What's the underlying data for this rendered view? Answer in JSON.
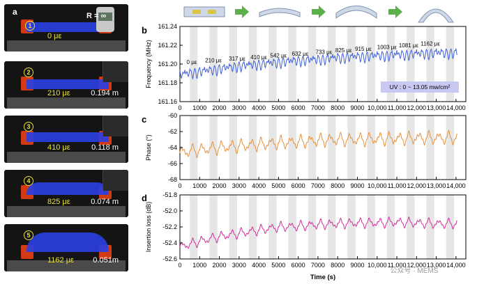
{
  "photo_panel": {
    "label": "a",
    "radius_label": "R = ∞",
    "gauge_readout": [
      "2.4227",
      "8561"
    ],
    "steps": [
      {
        "num": "1",
        "strain": "0 με",
        "radius": ""
      },
      {
        "num": "2",
        "strain": "210 με",
        "radius": "0.194 m"
      },
      {
        "num": "3",
        "strain": "410 με",
        "radius": "0.118 m"
      },
      {
        "num": "4",
        "strain": "825 με",
        "radius": "0.074 m"
      },
      {
        "num": "5",
        "strain": "1162 με",
        "radius": "0.051m"
      }
    ]
  },
  "uv_label": "UV : 0 ~ 13.05 mw/cm²",
  "x_axis_label": "Time (s)",
  "watermark": "公众号 · MEMS",
  "chart_data": [
    {
      "id": "b",
      "type": "line",
      "panel_label": "b",
      "ylabel": "Frequency (MHz)",
      "color": "#3f5fd8",
      "xlim": [
        0,
        14500
      ],
      "ylim": [
        161.16,
        161.24
      ],
      "y_ticks": [
        "161.24",
        "161.22",
        "161.20",
        "161.18",
        "161.16"
      ],
      "x_ticks": [
        "0",
        "1000",
        "2000",
        "3000",
        "4000",
        "5000",
        "6000",
        "7000",
        "8000",
        "9000",
        "10,000",
        "11,000",
        "12,000",
        "13,000",
        "14,000"
      ],
      "x": [
        0,
        1000,
        2000,
        3000,
        4000,
        5000,
        6000,
        7000,
        8000,
        9000,
        10000,
        11000,
        12000,
        13000,
        14000
      ],
      "values": [
        161.193,
        161.196,
        161.199,
        161.202,
        161.204,
        161.206,
        161.208,
        161.209,
        161.211,
        161.212,
        161.213,
        161.214,
        161.215,
        161.216,
        161.216
      ],
      "annotations": [
        {
          "x": 600,
          "text": "0 με"
        },
        {
          "x": 1700,
          "text": "210 με"
        },
        {
          "x": 2900,
          "text": "317 με"
        },
        {
          "x": 4000,
          "text": "410 με"
        },
        {
          "x": 5000,
          "text": "542 με"
        },
        {
          "x": 6100,
          "text": "632 με"
        },
        {
          "x": 7300,
          "text": "733 με"
        },
        {
          "x": 8300,
          "text": "825 με"
        },
        {
          "x": 9300,
          "text": "915 με"
        },
        {
          "x": 10500,
          "text": "1003 με"
        },
        {
          "x": 11600,
          "text": "1081 με"
        },
        {
          "x": 12700,
          "text": "1162 με"
        }
      ]
    },
    {
      "id": "c",
      "type": "line",
      "panel_label": "c",
      "ylabel": "Phase (°)",
      "color": "#e8913a",
      "xlim": [
        0,
        14500
      ],
      "ylim": [
        -68,
        -60
      ],
      "y_ticks": [
        "-60",
        "-62",
        "-64",
        "-66",
        "-68"
      ],
      "x_ticks": [
        "0",
        "1000",
        "2000",
        "3000",
        "4000",
        "5000",
        "6000",
        "7000",
        "8000",
        "9000",
        "10,000",
        "11,000",
        "12,000",
        "13,000",
        "14,000"
      ],
      "x": [
        0,
        1000,
        2000,
        3000,
        4000,
        5000,
        6000,
        7000,
        8000,
        9000,
        10000,
        11000,
        12000,
        13000,
        14000
      ],
      "values": [
        -64.6,
        -64.3,
        -64.0,
        -63.8,
        -63.6,
        -63.4,
        -63.3,
        -63.1,
        -63.0,
        -63.0,
        -62.9,
        -62.9,
        -62.8,
        -62.8,
        -62.8
      ]
    },
    {
      "id": "d",
      "type": "line",
      "panel_label": "d",
      "ylabel": "Insertion loss (dB)",
      "color": "#d0309a",
      "xlim": [
        0,
        14500
      ],
      "ylim": [
        -52.6,
        -51.8
      ],
      "y_ticks": [
        "-51.8",
        "-52.0",
        "-52.2",
        "-52.4",
        "-52.6"
      ],
      "x_ticks": [
        "0",
        "1000",
        "2000",
        "3000",
        "4000",
        "5000",
        "6000",
        "7000",
        "8000",
        "9000",
        "10,000",
        "11,000",
        "12,000",
        "13,000",
        "14,000"
      ],
      "x": [
        0,
        1000,
        2000,
        3000,
        4000,
        5000,
        6000,
        7000,
        8000,
        9000,
        10000,
        11000,
        12000,
        13000,
        14000
      ],
      "values": [
        -52.45,
        -52.38,
        -52.32,
        -52.28,
        -52.24,
        -52.2,
        -52.19,
        -52.17,
        -52.16,
        -52.15,
        -52.15,
        -52.14,
        -52.15,
        -52.16,
        -52.16
      ]
    }
  ]
}
